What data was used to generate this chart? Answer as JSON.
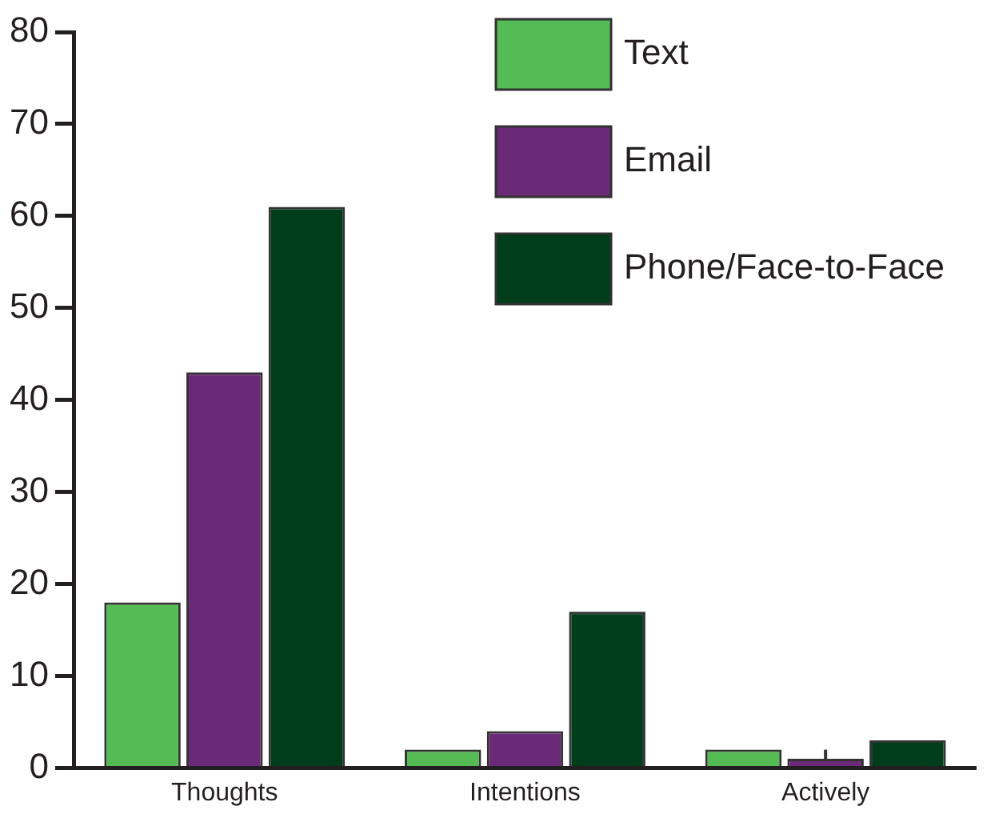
{
  "chart_data": {
    "type": "bar",
    "categories": [
      "Thoughts",
      "Intentions",
      "Actively"
    ],
    "series": [
      {
        "name": "Text",
        "color": "#55bb55",
        "values": [
          18,
          2,
          2
        ]
      },
      {
        "name": "Email",
        "color": "#6b2a77",
        "values": [
          43,
          4,
          1
        ],
        "errors": [
          null,
          null,
          [
            1,
            2
          ]
        ]
      },
      {
        "name": "Phone/Face-to-Face",
        "color": "#003d1a",
        "values": [
          61,
          17,
          3
        ]
      }
    ],
    "ylim": [
      0,
      80
    ],
    "yticks": [
      0,
      10,
      20,
      30,
      40,
      50,
      60,
      70,
      80
    ],
    "grid": false,
    "legend": "top right"
  }
}
